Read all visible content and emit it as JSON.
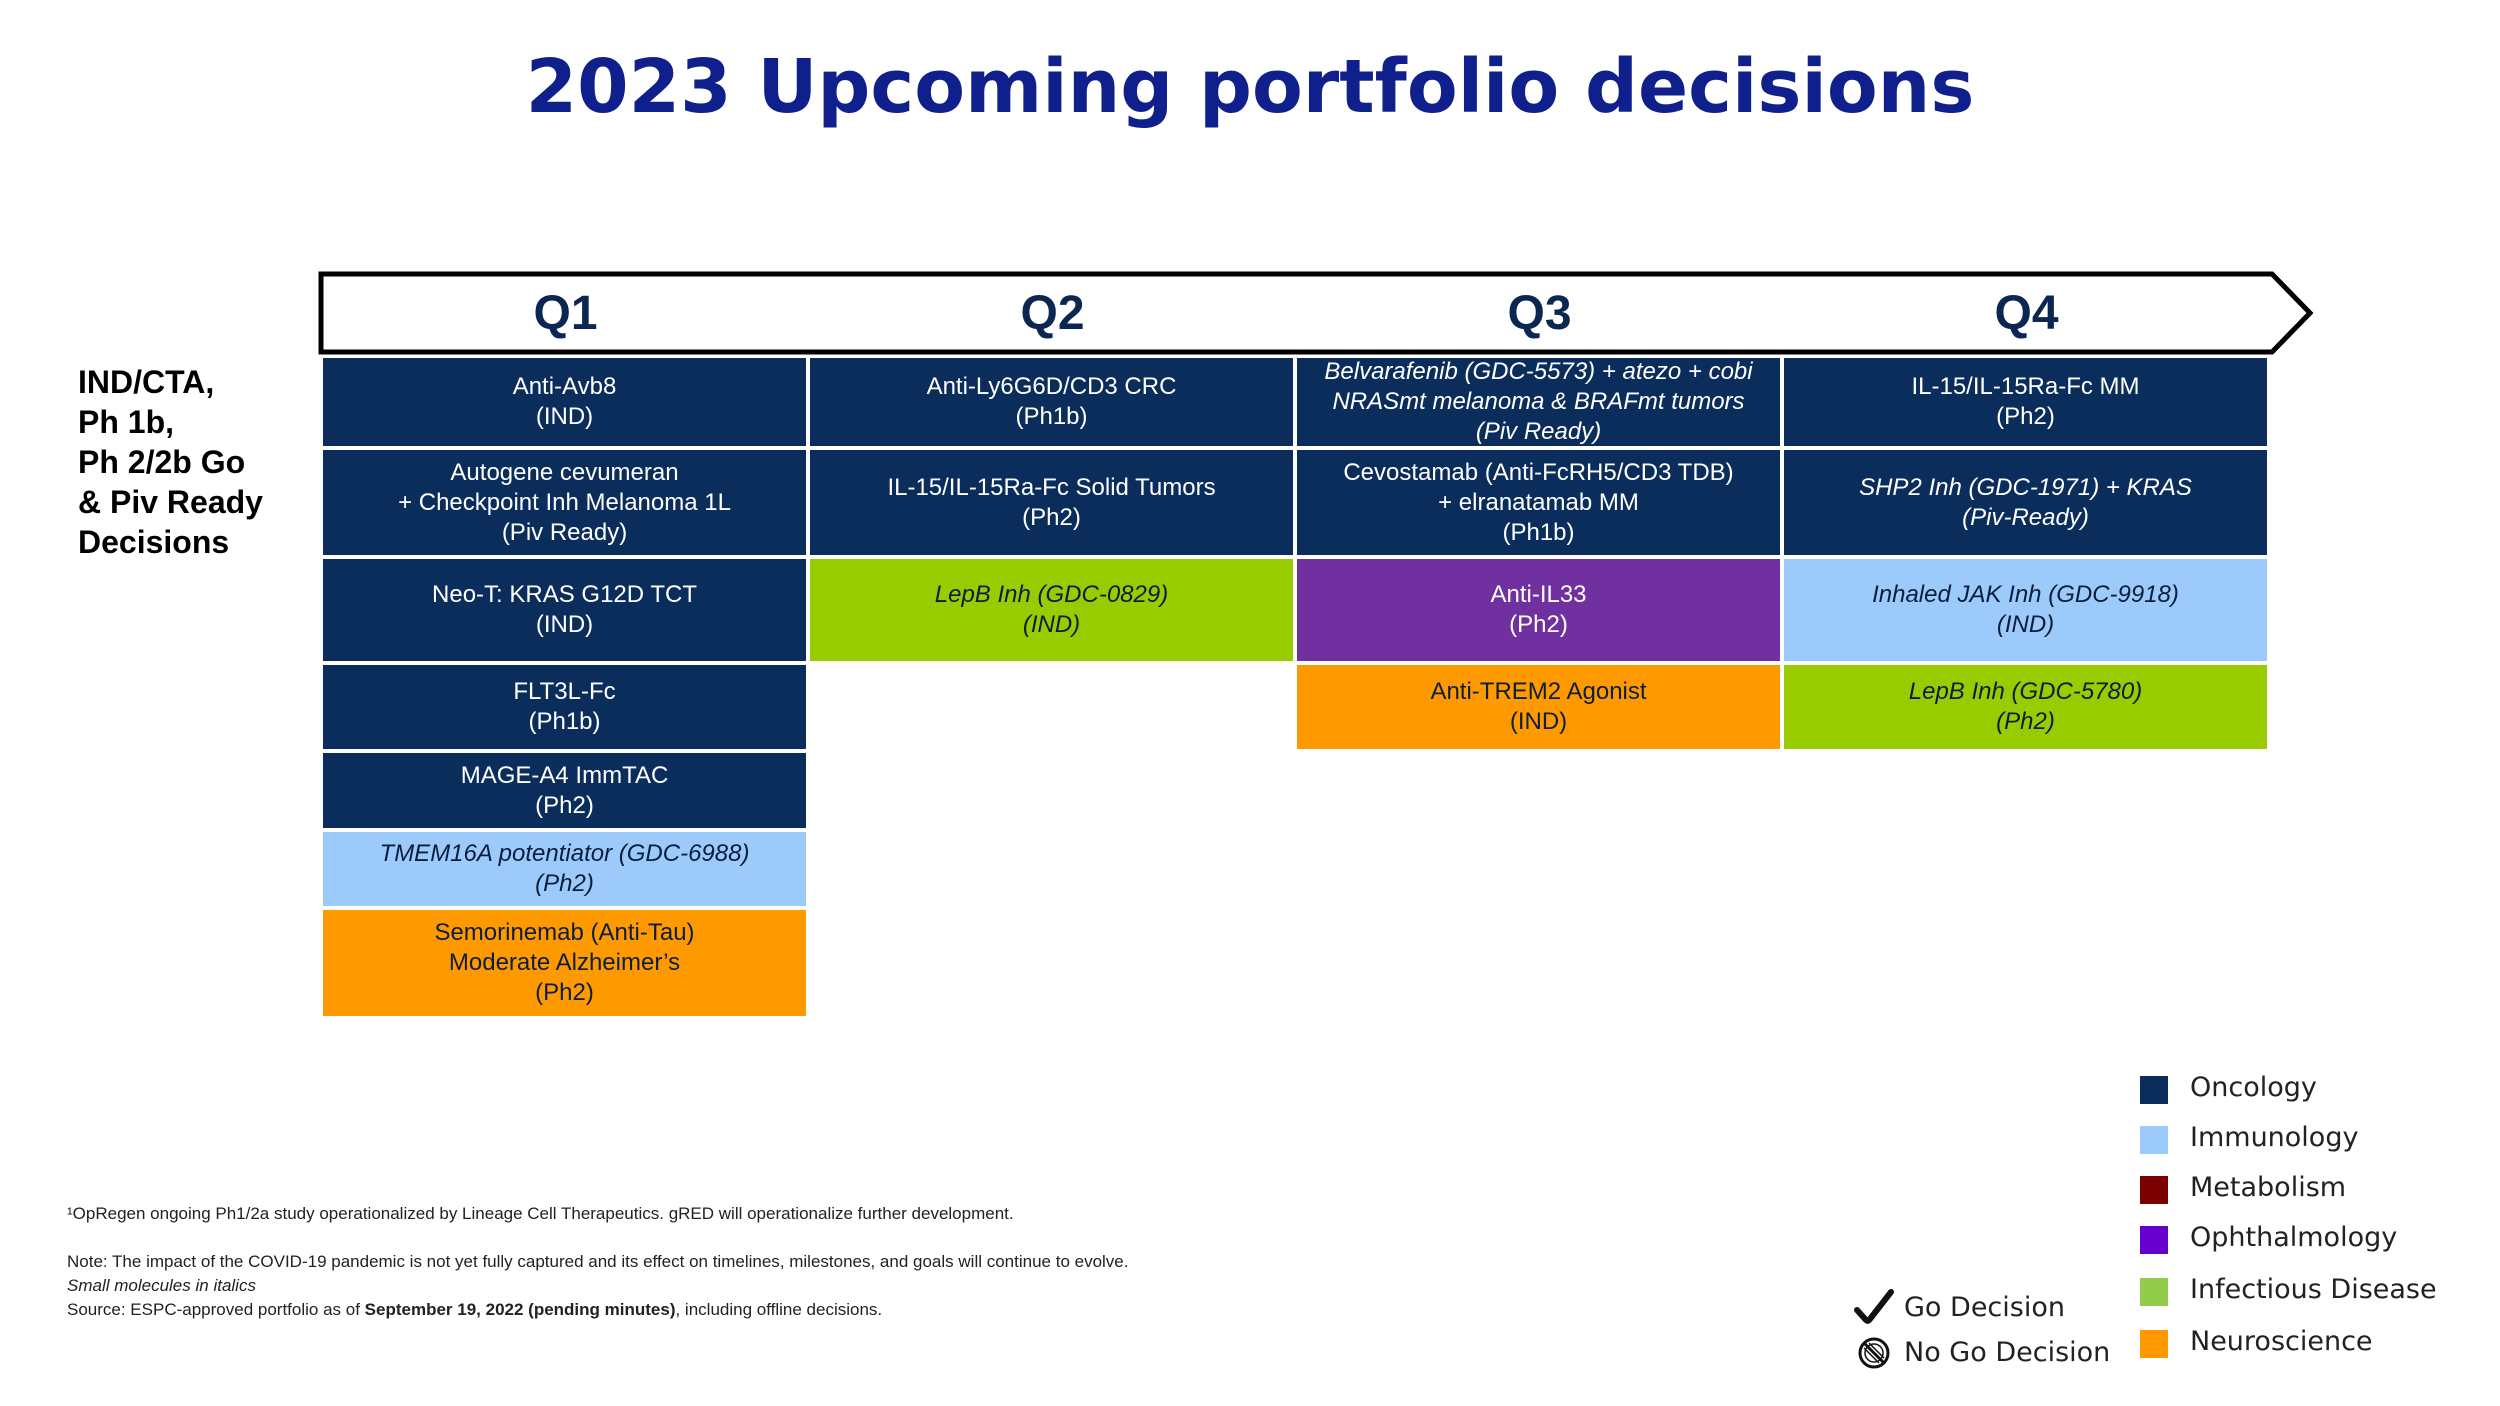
{
  "title": "2023 Upcoming portfolio decisions",
  "side_label": [
    "IND/CTA,",
    "Ph 1b,",
    "Ph 2/2b Go",
    "& Piv Ready",
    "Decisions"
  ],
  "quarters": [
    "Q1",
    "Q2",
    "Q3",
    "Q4"
  ],
  "colors": {
    "Oncology": "#0a2d5c",
    "Immunology": "#9ccbfb",
    "Metabolism": "#7b0000",
    "Ophthalmology": "#6600cc",
    "Infectious Disease": "#92cc4a",
    "Neuroscience": "#ff9900"
  },
  "cells": [
    {
      "area": "Oncology",
      "italic": false,
      "lines": [
        "Anti-Avb8",
        "(IND)"
      ]
    },
    {
      "area": "Oncology",
      "italic": false,
      "lines": [
        "Autogene cevumeran",
        "+ Checkpoint Inh Melanoma 1L",
        "(Piv Ready)"
      ]
    },
    {
      "area": "Oncology",
      "italic": false,
      "lines": [
        "Neo-T: KRAS G12D TCT",
        "(IND)"
      ]
    },
    {
      "area": "Oncology",
      "italic": false,
      "lines": [
        "FLT3L-Fc",
        "(Ph1b)"
      ]
    },
    {
      "area": "Oncology",
      "italic": false,
      "lines": [
        "MAGE-A4 ImmTAC",
        "(Ph2)"
      ]
    },
    {
      "area": "Immunology",
      "italic": true,
      "lines": [
        "TMEM16A potentiator (GDC-6988)",
        "(Ph2)"
      ]
    },
    {
      "area": "Neuroscience",
      "italic": false,
      "lines": [
        "Semorinemab (Anti-Tau)",
        "Moderate Alzheimer’s",
        "(Ph2)"
      ]
    },
    {
      "area": "Oncology",
      "italic": false,
      "lines": [
        "Anti-Ly6G6D/CD3 CRC",
        "(Ph1b)"
      ]
    },
    {
      "area": "Oncology",
      "italic": false,
      "lines": [
        "IL-15/IL-15Ra-Fc Solid Tumors",
        "(Ph2)"
      ]
    },
    {
      "area": "Infectious Disease",
      "italic": true,
      "lines": [
        "LepB Inh (GDC-0829)",
        "(IND)"
      ]
    },
    {
      "area": "Oncology",
      "italic": true,
      "lines": [
        "Belvarafenib (GDC-5573) + atezo + cobi",
        "NRASmt melanoma & BRAFmt tumors",
        "(Piv Ready)"
      ]
    },
    {
      "area": "Oncology",
      "italic": false,
      "lines": [
        "Cevostamab (Anti-FcRH5/CD3 TDB)",
        "+ elranatamab MM",
        "(Ph1b)"
      ]
    },
    {
      "area": "Ophthalmology",
      "italic": false,
      "lines": [
        "Anti-IL33",
        "(Ph2)"
      ]
    },
    {
      "area": "Neuroscience",
      "italic": false,
      "lines": [
        "Anti-TREM2 Agonist",
        "(IND)"
      ]
    },
    {
      "area": "Oncology",
      "italic": false,
      "lines": [
        "IL-15/IL-15Ra-Fc MM",
        "(Ph2)"
      ]
    },
    {
      "area": "Oncology",
      "italic": true,
      "lines": [
        "SHP2 Inh (GDC-1971) + KRAS",
        "(Piv-Ready)"
      ]
    },
    {
      "area": "Immunology",
      "italic": true,
      "lines": [
        "Inhaled JAK Inh (GDC-9918)",
        "(IND)"
      ]
    },
    {
      "area": "Infectious Disease",
      "italic": true,
      "lines": [
        "LepB Inh (GDC-5780)",
        "(Ph2)"
      ]
    }
  ],
  "footnotes": {
    "line1": "¹OpRegen ongoing Ph1/2a study operationalized by Lineage Cell Therapeutics. gRED will operationalize further development.",
    "line2": "Note: The impact of the COVID-19 pandemic is not yet fully captured and its effect on timelines, milestones, and goals will continue to evolve.",
    "line3": "Small molecules in italics",
    "line4_prefix": "Source: ESPC-approved portfolio as of ",
    "line4_bold": "September 19, 2022 (pending minutes)",
    "line4_suffix": ", including offline decisions."
  },
  "legend": [
    "Oncology",
    "Immunology",
    "Metabolism",
    "Ophthalmology",
    "Infectious Disease",
    "Neuroscience"
  ],
  "decisions": {
    "go": {
      "label": "Go Decision",
      "icon": "checkmark-icon"
    },
    "no_go": {
      "label": "No Go Decision",
      "icon": "prohibited-icon"
    }
  }
}
